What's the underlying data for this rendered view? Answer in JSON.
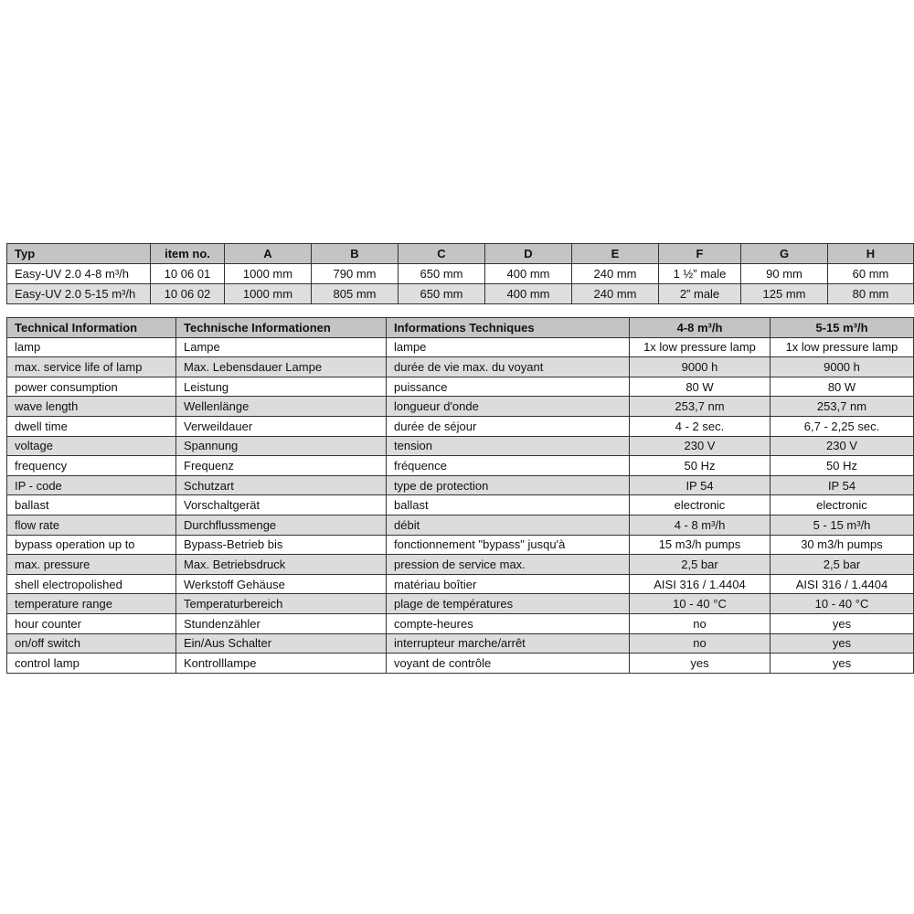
{
  "dimensions_table": {
    "headers": [
      "Typ",
      "item no.",
      "A",
      "B",
      "C",
      "D",
      "E",
      "F",
      "G",
      "H"
    ],
    "rows": [
      [
        "Easy-UV 2.0 4-8 m³/h",
        "10 06 01",
        "1000 mm",
        "790 mm",
        "650 mm",
        "400 mm",
        "240 mm",
        "1 ½” male",
        "90 mm",
        "60 mm"
      ],
      [
        "Easy-UV 2.0 5-15 m³/h",
        "10 06 02",
        "1000 mm",
        "805 mm",
        "650 mm",
        "400 mm",
        "240 mm",
        "2” male",
        "125 mm",
        "80 mm"
      ]
    ]
  },
  "technical_table": {
    "headers": [
      "Technical Information",
      "Technische Informationen",
      "Informations Techniques",
      "4-8 m³/h",
      "5-15 m³/h"
    ],
    "rows": [
      [
        "lamp",
        "Lampe",
        "lampe",
        "1x low pressure lamp",
        "1x low pressure lamp"
      ],
      [
        "max. service life of lamp",
        "Max. Lebensdauer Lampe",
        "durée de vie max. du voyant",
        "9000 h",
        "9000 h"
      ],
      [
        "power consumption",
        "Leistung",
        "puissance",
        "80 W",
        "80 W"
      ],
      [
        "wave length",
        "Wellenlänge",
        "longueur d'onde",
        "253,7 nm",
        "253,7 nm"
      ],
      [
        "dwell time",
        "Verweildauer",
        "durée de séjour",
        "4 - 2 sec.",
        "6,7 - 2,25 sec."
      ],
      [
        "voltage",
        "Spannung",
        "tension",
        "230 V",
        "230 V"
      ],
      [
        "frequency",
        "Frequenz",
        "fréquence",
        "50 Hz",
        "50 Hz"
      ],
      [
        "IP - code",
        "Schutzart",
        "type de protection",
        "IP 54",
        "IP 54"
      ],
      [
        "ballast",
        "Vorschaltgerät",
        "ballast",
        "electronic",
        "electronic"
      ],
      [
        "flow rate",
        "Durchflussmenge",
        "débit",
        "4 - 8 m³/h",
        "5 - 15 m³/h"
      ],
      [
        "bypass operation up to",
        "Bypass-Betrieb bis",
        "fonctionnement \"bypass\" jusqu'à",
        "15 m3/h pumps",
        "30 m3/h pumps"
      ],
      [
        "max. pressure",
        "Max. Betriebsdruck",
        "pression de service max.",
        "2,5 bar",
        "2,5 bar"
      ],
      [
        "shell electropolished",
        "Werkstoff Gehäuse",
        "matériau boîtier",
        "AISI 316 / 1.4404",
        "AISI 316 / 1.4404"
      ],
      [
        "temperature range",
        "Temperaturbereich",
        "plage de températures",
        "10 - 40 °C",
        "10 - 40 °C"
      ],
      [
        "hour counter",
        "Stundenzähler",
        "compte-heures",
        "no",
        "yes"
      ],
      [
        "on/off switch",
        "Ein/Aus Schalter",
        "interrupteur marche/arrêt",
        "no",
        "yes"
      ],
      [
        "control lamp",
        "Kontrolllampe",
        "voyant de contrôle",
        "yes",
        "yes"
      ]
    ]
  },
  "colors": {
    "header_bg": "#c4c4c4",
    "alt_row_bg": "#dcdcdc",
    "border": "#333333"
  }
}
